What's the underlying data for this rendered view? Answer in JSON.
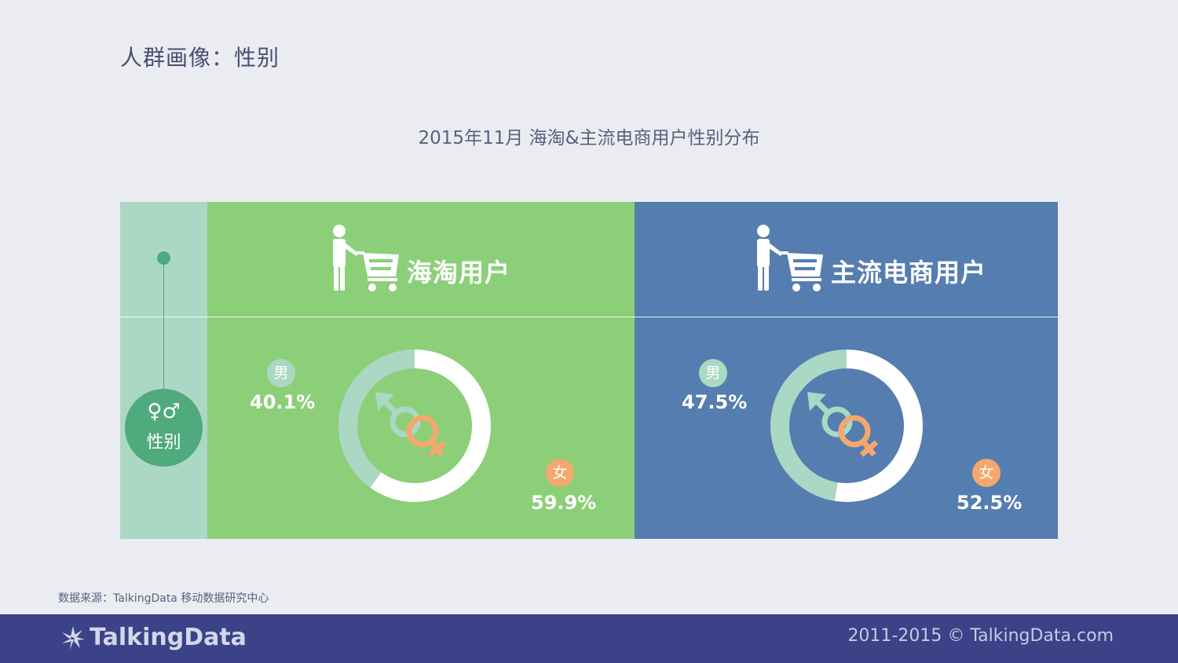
{
  "page_title": "人群画像：性别",
  "side": {
    "badge_icons": "♀♂",
    "badge_label": "性别"
  },
  "source": "数据来源：TalkingData 移动数据研究中心",
  "footer": {
    "brand": "TalkingData",
    "copyright": "2011-2015 © TalkingData.com"
  },
  "colors": {
    "background": "#ebecf1",
    "haitao_panel": "#8ccf79",
    "mainstream_panel": "#557daf",
    "strip": "#abd8c5",
    "male": "#abd8c5",
    "female": "#f5a86e",
    "donut_female_ring": "#ffffff",
    "footer": "#3c4287"
  },
  "icons": [
    "shopping-cart-person-icon",
    "gender-symbol-icon",
    "male-symbol-icon",
    "female-symbol-icon",
    "talkingdata-logo-icon"
  ],
  "chart_data": {
    "type": "pie",
    "title": "2015年11月 海淘&主流电商用户性别分布",
    "groups": [
      {
        "name": "海淘用户",
        "slices": [
          {
            "label": "男",
            "value": 40.1,
            "display": "40.1%"
          },
          {
            "label": "女",
            "value": 59.9,
            "display": "59.9%"
          }
        ]
      },
      {
        "name": "主流电商用户",
        "slices": [
          {
            "label": "男",
            "value": 47.5,
            "display": "47.5%"
          },
          {
            "label": "女",
            "value": 52.5,
            "display": "52.5%"
          }
        ]
      }
    ]
  }
}
